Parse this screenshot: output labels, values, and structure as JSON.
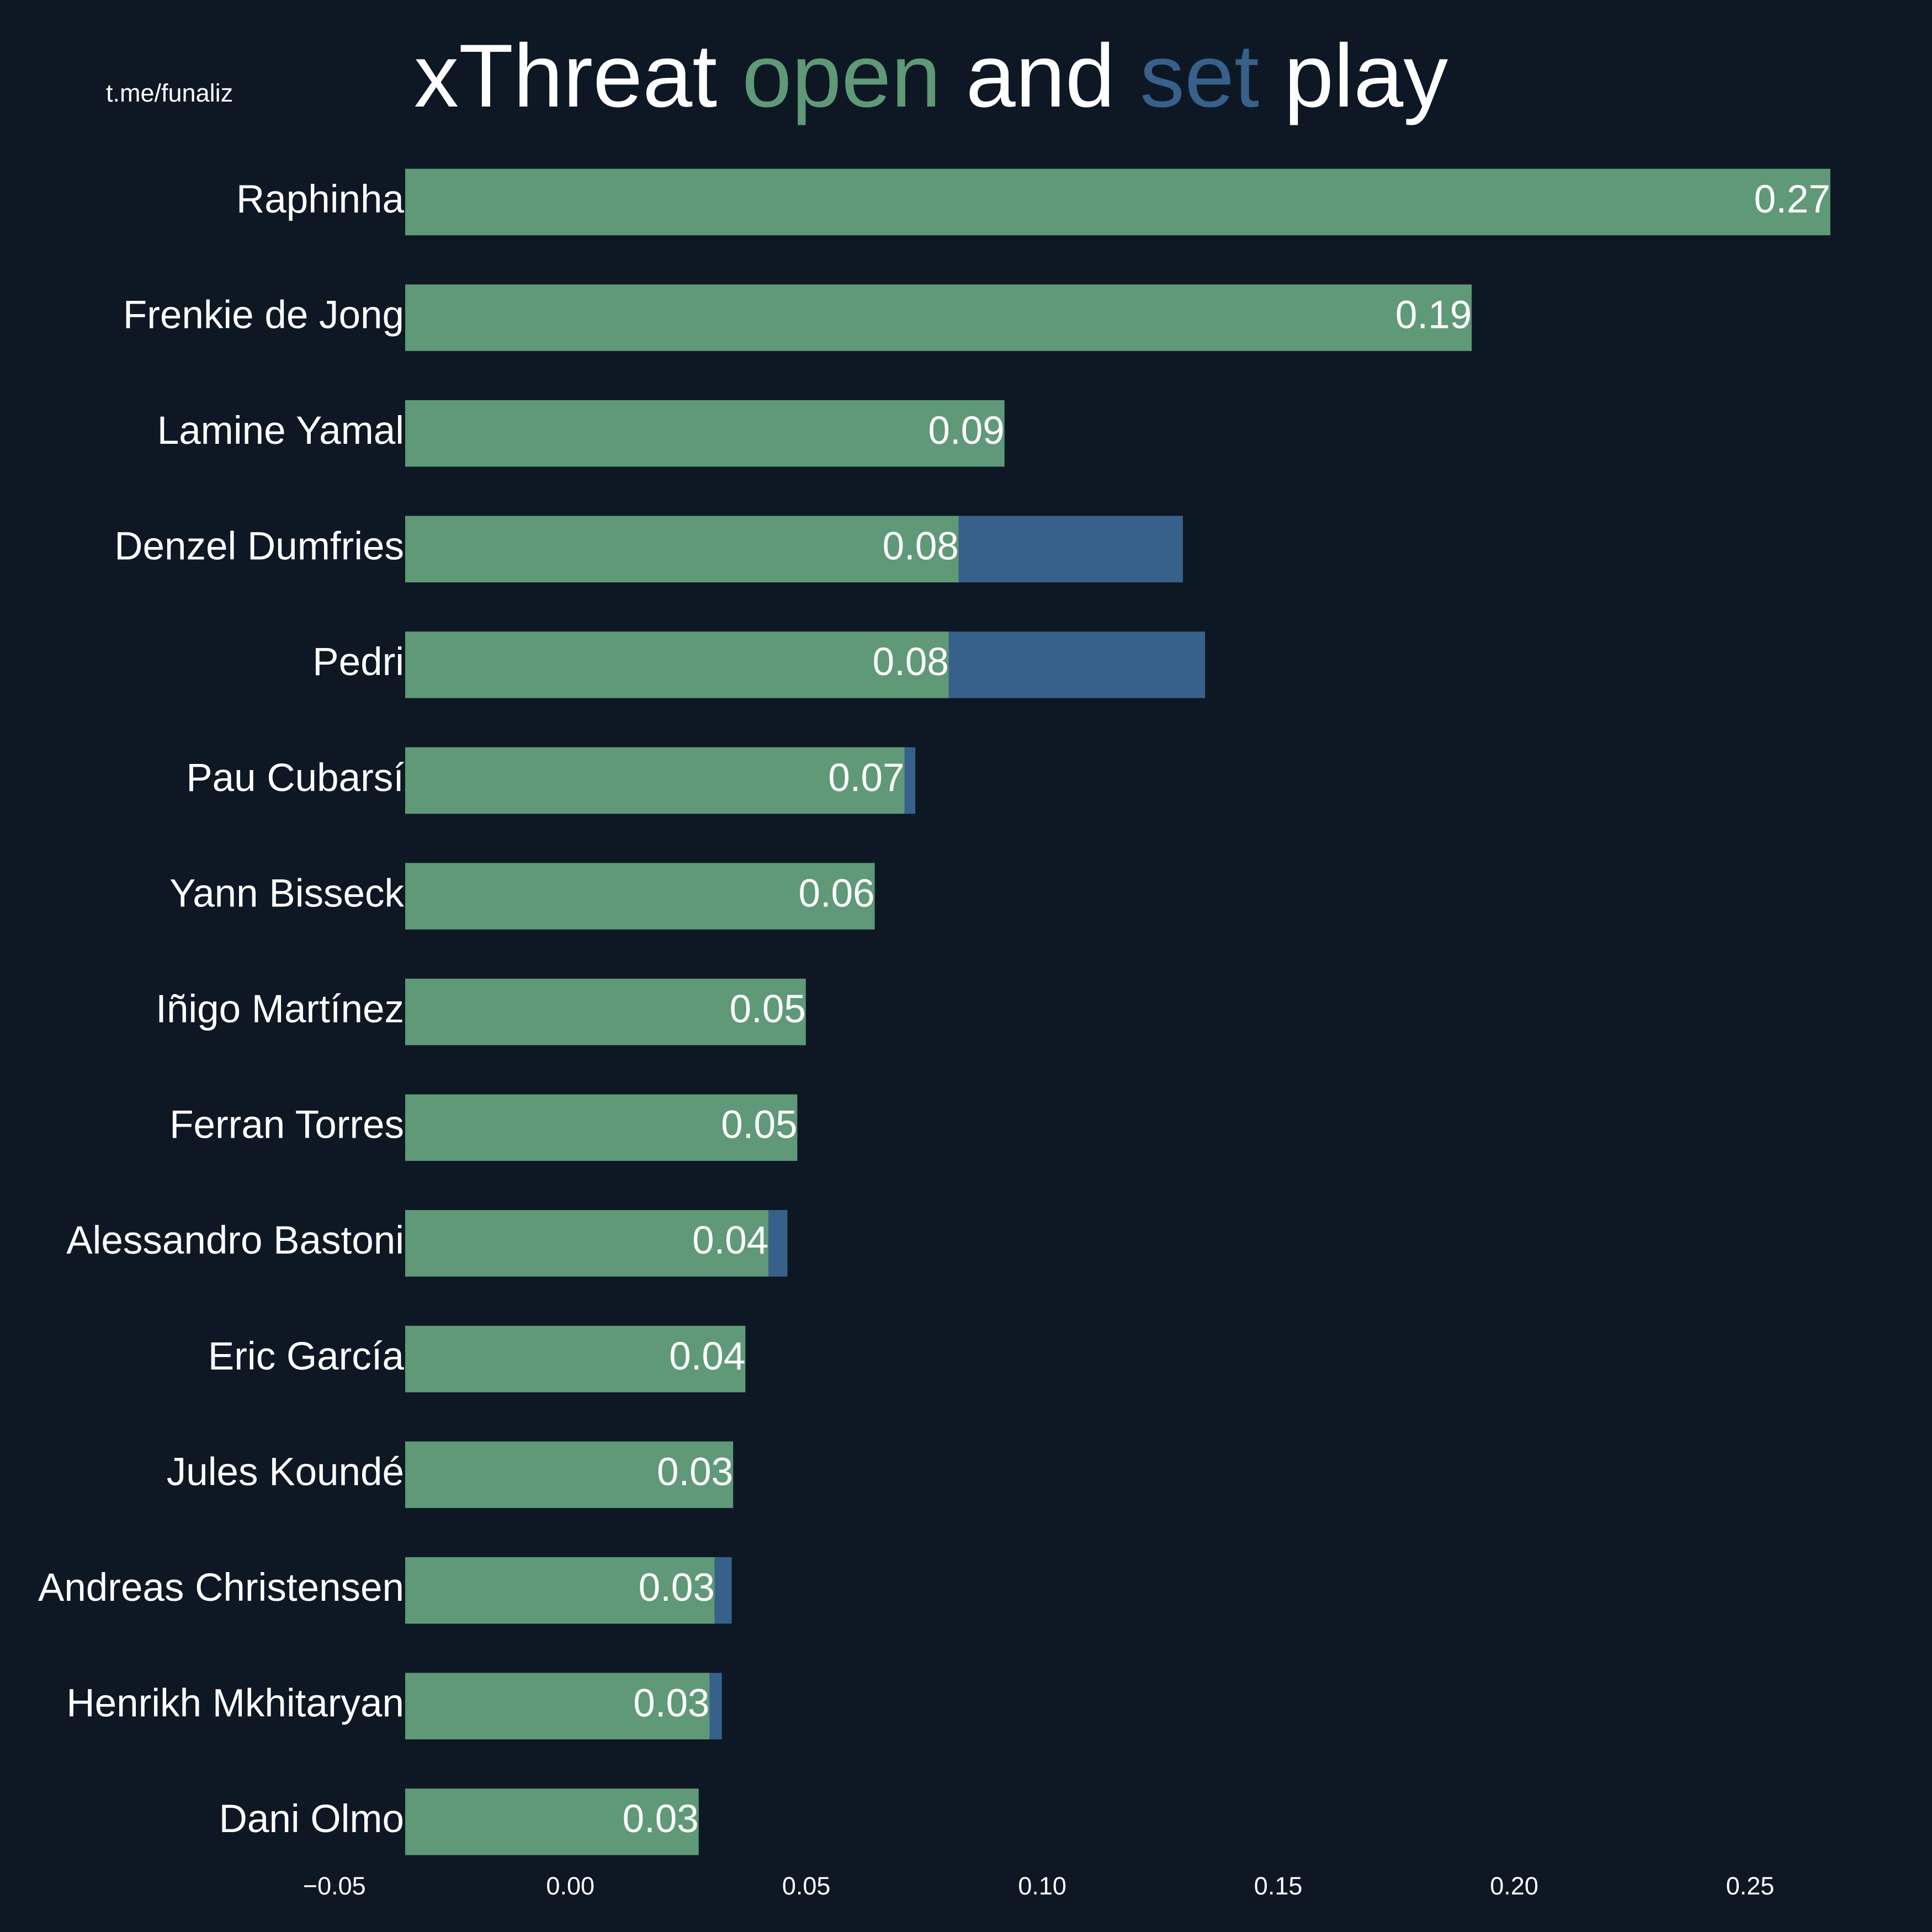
{
  "chart_data": {
    "type": "barh_stacked",
    "title": [
      "xThreat",
      "and",
      "play"
    ],
    "watermark": "t.me/funaliz",
    "background": "#0e1824",
    "categories": [
      "Raphinha",
      "Frenkie de Jong",
      "Lamine Yamal",
      "Denzel Dumfries",
      "Pedri",
      "Pau Cubarsí",
      "Yann Bisseck",
      "Iñigo Martínez",
      "Ferran Torres",
      "Alessandro Bastoni",
      "Eric García",
      "Jules Koundé",
      "Andreas Christensen",
      "Henrikh Mkhitaryan",
      "Dani Olmo"
    ],
    "series": [
      {
        "name": "open",
        "color": "#5f9977",
        "values": [
          0.267,
          0.191,
          0.092,
          0.0823,
          0.0802,
          0.0708,
          0.0645,
          0.0499,
          0.0481,
          0.042,
          0.0371,
          0.0345,
          0.0306,
          0.0295,
          0.0272
        ],
        "value_labels": [
          "0.27",
          "0.19",
          "0.09",
          "0.08",
          "0.08",
          "0.07",
          "0.06",
          "0.05",
          "0.05",
          "0.04",
          "0.04",
          "0.03",
          "0.03",
          "0.03",
          "0.03"
        ]
      },
      {
        "name": "set",
        "color": "#37618a",
        "values": [
          0,
          0,
          0,
          0.0475,
          0.0543,
          0.0023,
          0,
          0,
          0,
          0.004,
          0,
          0,
          0.0036,
          0.0026,
          0
        ]
      }
    ],
    "xlim": [
      -0.035,
      0.28
    ],
    "xticks": [
      {
        "value": -0.05,
        "label": "−0.05"
      },
      {
        "value": 0,
        "label": "0.00"
      },
      {
        "value": 0.05,
        "label": "0.05"
      },
      {
        "value": 0.1,
        "label": "0.10"
      },
      {
        "value": 0.15,
        "label": "0.15"
      },
      {
        "value": 0.2,
        "label": "0.20"
      },
      {
        "value": 0.25,
        "label": "0.25"
      }
    ],
    "grid": false
  }
}
